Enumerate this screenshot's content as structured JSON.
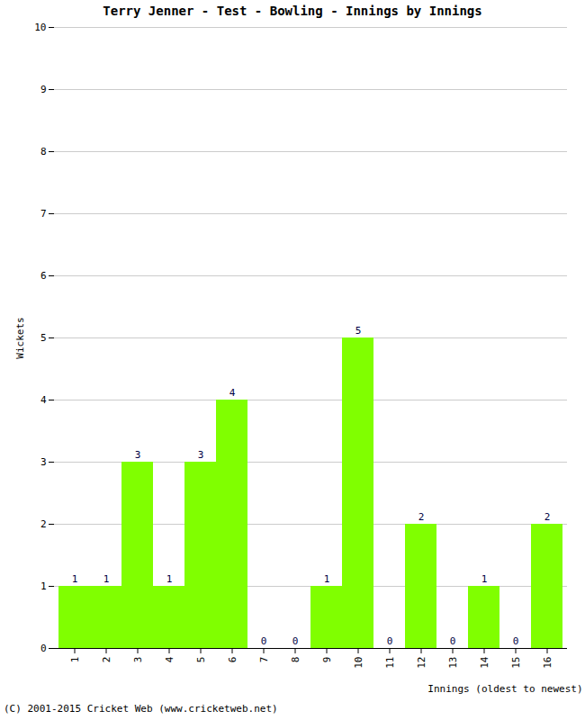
{
  "chart_data": {
    "type": "bar",
    "title": "Terry Jenner - Test - Bowling - Innings by Innings",
    "x_label": "Innings (oldest to newest)",
    "y_label": "Wickets",
    "caption": "(C) 2001-2015 Cricket Web (www.cricketweb.net)",
    "categories": [
      "1",
      "2",
      "3",
      "4",
      "5",
      "6",
      "7",
      "8",
      "9",
      "10",
      "11",
      "12",
      "13",
      "14",
      "15",
      "16"
    ],
    "values": [
      1,
      1,
      3,
      1,
      3,
      4,
      0,
      0,
      1,
      5,
      0,
      2,
      0,
      1,
      0,
      2
    ],
    "color": "#80ff00",
    "ylim": [
      0,
      10
    ],
    "yticks": [
      0,
      1,
      2,
      3,
      4,
      5,
      6,
      7,
      8,
      9,
      10
    ],
    "grid": true,
    "data_labels": true
  }
}
